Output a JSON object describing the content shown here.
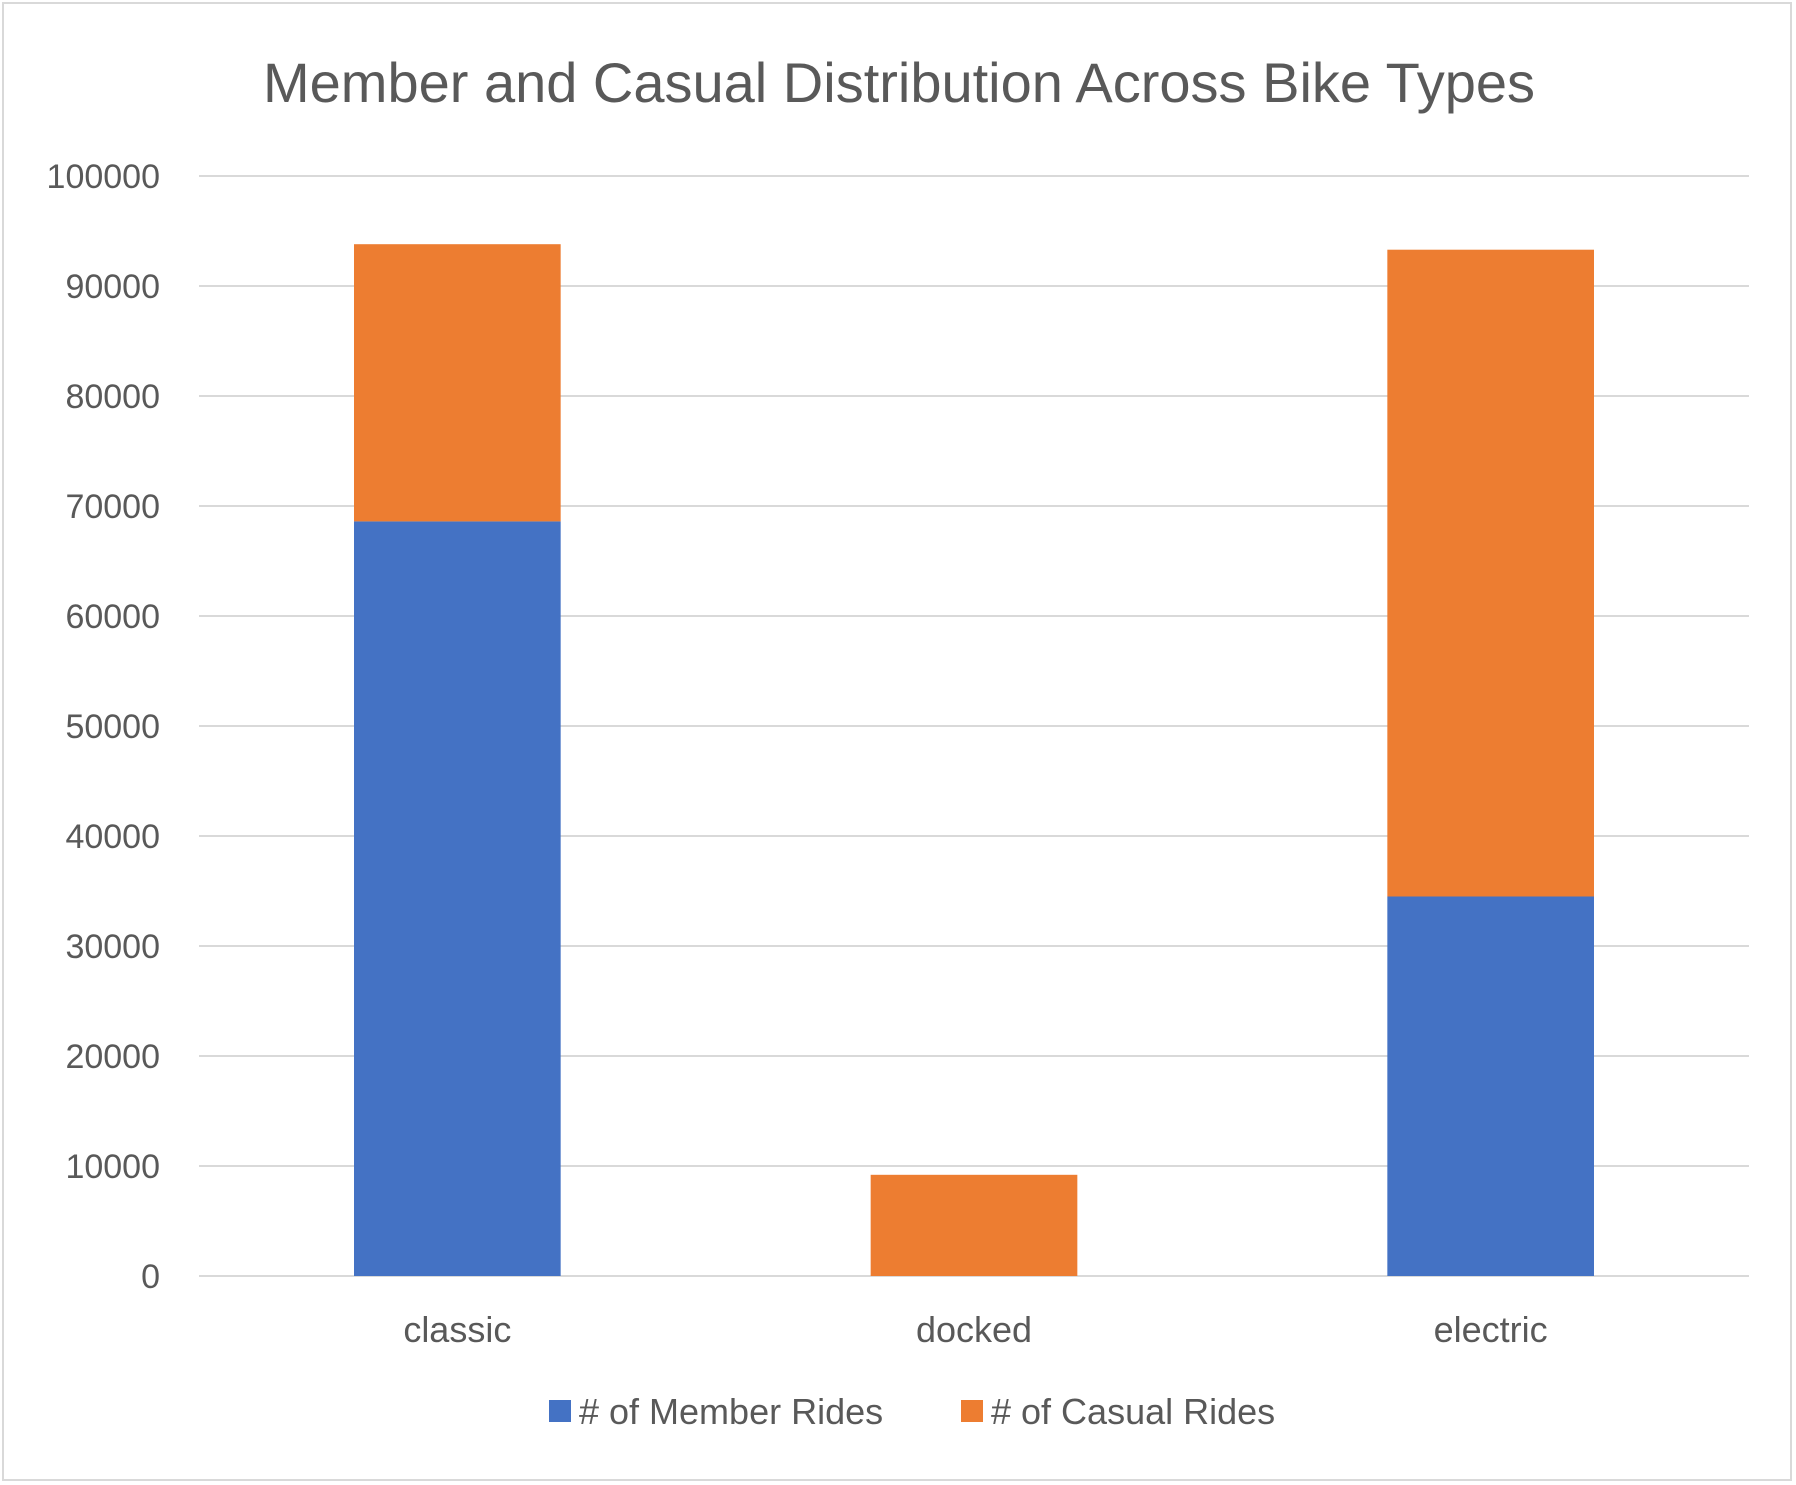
{
  "chart_data": {
    "type": "bar",
    "stacked": true,
    "title": "Member and Casual Distribution Across Bike Types",
    "categories": [
      "classic",
      "docked",
      "electric"
    ],
    "series": [
      {
        "name": "# of Member Rides",
        "values": [
          68600,
          0,
          34500
        ],
        "color": "#4472C4"
      },
      {
        "name": "# of Casual Rides",
        "values": [
          25200,
          9200,
          58800
        ],
        "color": "#ED7D31"
      }
    ],
    "ylim": [
      0,
      100000
    ],
    "yticks": [
      0,
      10000,
      20000,
      30000,
      40000,
      50000,
      60000,
      70000,
      80000,
      90000,
      100000
    ],
    "grid": true,
    "legend": "bottom"
  }
}
